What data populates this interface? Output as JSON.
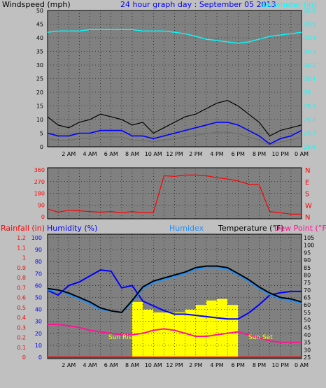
{
  "colors": {
    "background": "#c0c0c0",
    "plot_bg": "#808080",
    "wind": "#000000",
    "wind_avg": "#0000ff",
    "wind_gray": "#6e6e6e",
    "barometer": "#00ffff",
    "title": "#0000ff",
    "direction": "#ff0000",
    "rainfall": "#ff0000",
    "humidity": "#0000ff",
    "humidex": "#1e90ff",
    "temperature": "#000000",
    "dewpoint": "#ff1493",
    "solar": "#ffff00",
    "sun": "#ffff00"
  },
  "chart_data": [
    {
      "type": "line",
      "title": "24 hour graph day : September 05 2013",
      "ylabel": "Windspeed (mph)",
      "y2label": "Barometer (in)",
      "x_ticks": [
        "2 AM",
        "4 AM",
        "6 AM",
        "8 AM",
        "10 AM",
        "12 PM",
        "2 PM",
        "4 PM",
        "6 PM",
        "8 PM",
        "10 PM",
        "0 AM"
      ],
      "ylim": [
        0,
        50
      ],
      "yticks": [
        0,
        5,
        10,
        15,
        20,
        25,
        30,
        35,
        40,
        45,
        50
      ],
      "y2lim": [
        29.6,
        30.6
      ],
      "y2ticks": [
        "29.6",
        "29.7",
        "29.8",
        "29.9",
        "30",
        "30.1",
        "30.2",
        "30.3",
        "30.4",
        "30.5",
        "30.6"
      ],
      "x": [
        0,
        1,
        2,
        3,
        4,
        5,
        6,
        7,
        8,
        9,
        10,
        11,
        12,
        13,
        14,
        15,
        16,
        17,
        18,
        19,
        20,
        21,
        22,
        23,
        24
      ],
      "series": [
        {
          "name": "Windspeed",
          "values": [
            11,
            8,
            7,
            9,
            10,
            12,
            11,
            10,
            8,
            9,
            5,
            7,
            9,
            11,
            12,
            14,
            16,
            17,
            15,
            12,
            9,
            4,
            6,
            7,
            8
          ]
        },
        {
          "name": "Wind average",
          "values": [
            5,
            4,
            4,
            5,
            5,
            6,
            6,
            6,
            4,
            4,
            3,
            4,
            5,
            6,
            7,
            8,
            9,
            9,
            8,
            6,
            4,
            1,
            3,
            4,
            6
          ]
        },
        {
          "name": "Barometer",
          "values": [
            30.44,
            30.45,
            30.45,
            30.45,
            30.46,
            30.46,
            30.46,
            30.46,
            30.46,
            30.45,
            30.45,
            30.45,
            30.44,
            30.43,
            30.41,
            30.39,
            30.38,
            30.37,
            30.36,
            30.37,
            30.39,
            30.41,
            30.42,
            30.43,
            30.44
          ]
        }
      ],
      "grid": true
    },
    {
      "type": "scatter",
      "ylabel_left_ticks": [
        0,
        90,
        180,
        270,
        360
      ],
      "compass_labels": [
        "N",
        "W",
        "S",
        "E",
        "N"
      ],
      "x": [
        0,
        1,
        2,
        3,
        4,
        5,
        6,
        7,
        8,
        9,
        10,
        11,
        12,
        13,
        14,
        15,
        16,
        17,
        18,
        19,
        20,
        21,
        22,
        23,
        24
      ],
      "series": [
        {
          "name": "Wind direction",
          "values": [
            60,
            35,
            50,
            45,
            40,
            35,
            40,
            30,
            40,
            30,
            32,
            315,
            310,
            320,
            320,
            315,
            300,
            290,
            275,
            250,
            245,
            40,
            30,
            20,
            20
          ]
        }
      ],
      "grid": true
    },
    {
      "type": "line",
      "labels": {
        "rainfall": "Rainfall (in)",
        "humidity": "Humidity (%)",
        "humidex": "Humidex",
        "temperature": "Temperature (°F)",
        "dewpoint": "Dew Point (°F)",
        "sun_rise": "Sun Rise",
        "sun_set": "Sun Set"
      },
      "left_rain_ticks": [
        "0",
        "0.1",
        "0.2",
        "0.3",
        "0.4",
        "0.5",
        "0.6",
        "0.7",
        "0.8",
        "0.9",
        "1",
        "1.1",
        "1.2"
      ],
      "left_hum_ticks": [
        0,
        10,
        20,
        30,
        40,
        50,
        60,
        70,
        80,
        90,
        100
      ],
      "right_temp_ticks": [
        25,
        30,
        35,
        40,
        45,
        50,
        55,
        60,
        65,
        70,
        75,
        80,
        85,
        90,
        95,
        100,
        105
      ],
      "ylim_temp": [
        25,
        105
      ],
      "x": [
        0,
        1,
        2,
        3,
        4,
        5,
        6,
        7,
        8,
        9,
        10,
        11,
        12,
        13,
        14,
        15,
        16,
        17,
        18,
        19,
        20,
        21,
        22,
        23,
        24
      ],
      "series": [
        {
          "name": "Temperature",
          "values": [
            71,
            70,
            68,
            65,
            62,
            58,
            56,
            55,
            63,
            72,
            76,
            78,
            80,
            82,
            85,
            86,
            86,
            85,
            81,
            77,
            72,
            68,
            65,
            64,
            62
          ]
        },
        {
          "name": "Humidex",
          "values": [
            70,
            70,
            67,
            64,
            61,
            57,
            56,
            55,
            62,
            71,
            75,
            77,
            79,
            81,
            84,
            85,
            85,
            84,
            80,
            76,
            71,
            67,
            64,
            63,
            61
          ]
        },
        {
          "name": "Humidity",
          "values": [
            56,
            52,
            60,
            63,
            68,
            73,
            72,
            58,
            60,
            47,
            43,
            39,
            36,
            36,
            35,
            34,
            33,
            32,
            32,
            37,
            44,
            52,
            54,
            55,
            55
          ]
        },
        {
          "name": "Dew Point",
          "values": [
            47,
            47,
            46,
            45,
            43,
            42,
            41,
            40,
            40,
            41,
            43,
            44,
            43,
            41,
            39,
            39,
            40,
            41,
            42,
            40,
            38,
            36,
            35,
            35,
            35
          ]
        },
        {
          "name": "Solar",
          "values": [
            0,
            0,
            0,
            0,
            0,
            0,
            0,
            0,
            62,
            57,
            55,
            55,
            55,
            57,
            60,
            63,
            64,
            60,
            0,
            0,
            0,
            0,
            0,
            0,
            0
          ]
        }
      ],
      "rainfall_total": 0,
      "grid": true
    }
  ]
}
